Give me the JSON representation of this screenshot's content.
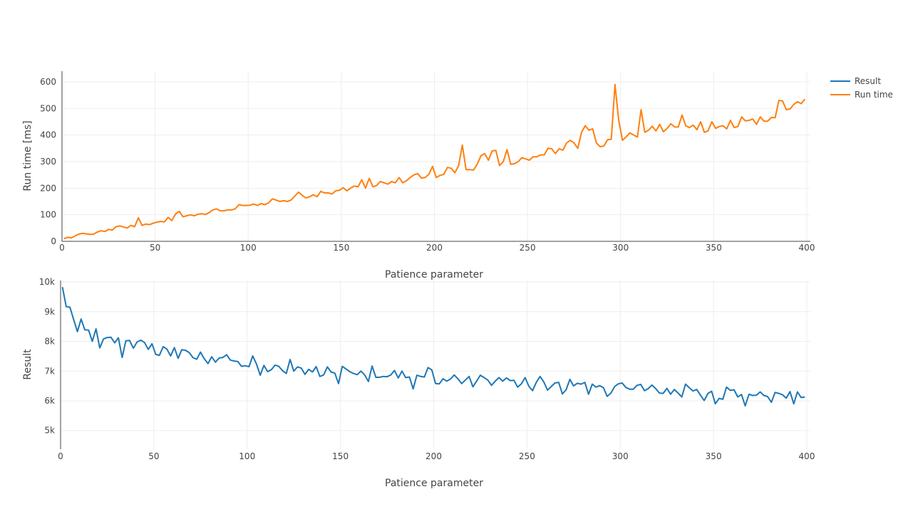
{
  "legend": [
    {
      "name": "Result",
      "color": "#1f77b4"
    },
    {
      "name": "Run time",
      "color": "#ff7f0e"
    }
  ],
  "chart_data": [
    {
      "type": "line",
      "title": "",
      "xlabel": "Patience parameter",
      "ylabel": "Run time [ms]",
      "xlim": [
        0,
        400
      ],
      "ylim": [
        0,
        640
      ],
      "xticks": [
        0,
        50,
        100,
        150,
        200,
        250,
        300,
        350,
        400
      ],
      "yticks": [
        0,
        100,
        200,
        300,
        400,
        500,
        600
      ],
      "ytick_labels": [
        "0",
        "100",
        "200",
        "300",
        "400",
        "500",
        "600"
      ],
      "grid": true,
      "series": [
        {
          "name": "Run time",
          "color": "#ff7f0e",
          "x": [
            1,
            3,
            5,
            7,
            9,
            11,
            13,
            15,
            17,
            19,
            21,
            23,
            25,
            27,
            29,
            31,
            33,
            35,
            37,
            39,
            41,
            43,
            45,
            47,
            49,
            51,
            53,
            55,
            57,
            59,
            61,
            63,
            65,
            67,
            69,
            71,
            73,
            75,
            77,
            79,
            81,
            83,
            85,
            87,
            89,
            91,
            93,
            95,
            97,
            99,
            101,
            103,
            105,
            107,
            109,
            111,
            113,
            115,
            117,
            119,
            121,
            123,
            125,
            127,
            129,
            131,
            133,
            135,
            137,
            139,
            141,
            143,
            145,
            147,
            149,
            151,
            153,
            155,
            157,
            159,
            161,
            163,
            165,
            167,
            169,
            171,
            173,
            175,
            177,
            179,
            181,
            183,
            185,
            187,
            189,
            191,
            193,
            195,
            197,
            199,
            201,
            203,
            205,
            207,
            209,
            211,
            213,
            215,
            217,
            219,
            221,
            223,
            225,
            227,
            229,
            231,
            233,
            235,
            237,
            239,
            241,
            243,
            245,
            247,
            249,
            251,
            253,
            255,
            257,
            259,
            261,
            263,
            265,
            267,
            269,
            271,
            273,
            275,
            277,
            279,
            281,
            283,
            285,
            287,
            289,
            291,
            293,
            295,
            297,
            299,
            301,
            303,
            305,
            307,
            309,
            311,
            313,
            315,
            317,
            319,
            321,
            323,
            325,
            327,
            329,
            331,
            333,
            335,
            337,
            339,
            341,
            343,
            345,
            347,
            349,
            351,
            353,
            355,
            357,
            359,
            361,
            363,
            365,
            367,
            369,
            371,
            373,
            375,
            377,
            379,
            381,
            383,
            385,
            387,
            389,
            391,
            393,
            395,
            397,
            399
          ],
          "y": [
            10,
            15,
            13,
            20,
            27,
            30,
            28,
            26,
            27,
            35,
            40,
            37,
            45,
            42,
            55,
            58,
            54,
            50,
            60,
            55,
            89,
            60,
            65,
            63,
            68,
            72,
            75,
            73,
            90,
            78,
            103,
            113,
            92,
            96,
            100,
            96,
            102,
            104,
            101,
            108,
            118,
            122,
            115,
            115,
            118,
            118,
            122,
            138,
            135,
            135,
            136,
            140,
            135,
            142,
            138,
            145,
            160,
            155,
            150,
            153,
            150,
            155,
            170,
            185,
            173,
            163,
            168,
            175,
            168,
            188,
            182,
            182,
            178,
            190,
            192,
            202,
            190,
            200,
            208,
            205,
            232,
            200,
            237,
            205,
            210,
            225,
            220,
            215,
            225,
            220,
            240,
            220,
            228,
            240,
            250,
            255,
            238,
            240,
            252,
            282,
            240,
            248,
            252,
            278,
            275,
            258,
            285,
            362,
            270,
            270,
            268,
            290,
            322,
            330,
            305,
            340,
            342,
            285,
            300,
            345,
            290,
            292,
            300,
            315,
            310,
            305,
            318,
            318,
            325,
            325,
            350,
            348,
            330,
            348,
            343,
            370,
            380,
            370,
            350,
            410,
            435,
            418,
            423,
            370,
            356,
            358,
            382,
            384,
            590,
            455,
            380,
            393,
            408,
            400,
            392,
            495,
            410,
            418,
            433,
            415,
            440,
            412,
            425,
            442,
            430,
            430,
            475,
            435,
            428,
            437,
            420,
            450,
            410,
            416,
            450,
            425,
            432,
            435,
            423,
            455,
            428,
            432,
            468,
            453,
            455,
            460,
            440,
            468,
            452,
            452,
            466,
            465,
            530,
            528,
            495,
            498,
            515,
            525,
            518,
            535
          ]
        }
      ]
    },
    {
      "type": "line",
      "title": "",
      "xlabel": "Patience parameter",
      "ylabel": "Result",
      "xlim": [
        0,
        400
      ],
      "ylim": [
        4370,
        10050
      ],
      "xticks": [
        0,
        50,
        100,
        150,
        200,
        250,
        300,
        350,
        400
      ],
      "yticks": [
        5000,
        6000,
        7000,
        8000,
        9000,
        10000
      ],
      "ytick_labels": [
        "5k",
        "6k",
        "7k",
        "8k",
        "9k",
        "10k"
      ],
      "grid": true,
      "series": [
        {
          "name": "Result",
          "color": "#1f77b4",
          "x": [
            1,
            3,
            5,
            7,
            9,
            11,
            13,
            15,
            17,
            19,
            21,
            23,
            25,
            27,
            29,
            31,
            33,
            35,
            37,
            39,
            41,
            43,
            45,
            47,
            49,
            51,
            53,
            55,
            57,
            59,
            61,
            63,
            65,
            67,
            69,
            71,
            73,
            75,
            77,
            79,
            81,
            83,
            85,
            87,
            89,
            91,
            93,
            95,
            97,
            99,
            101,
            103,
            105,
            107,
            109,
            111,
            113,
            115,
            117,
            119,
            121,
            123,
            125,
            127,
            129,
            131,
            133,
            135,
            137,
            139,
            141,
            143,
            145,
            147,
            149,
            151,
            153,
            155,
            157,
            159,
            161,
            163,
            165,
            167,
            169,
            171,
            173,
            175,
            177,
            179,
            181,
            183,
            185,
            187,
            189,
            191,
            193,
            195,
            197,
            199,
            201,
            203,
            205,
            207,
            209,
            211,
            213,
            215,
            217,
            219,
            221,
            223,
            225,
            227,
            229,
            231,
            233,
            235,
            237,
            239,
            241,
            243,
            245,
            247,
            249,
            251,
            253,
            255,
            257,
            259,
            261,
            263,
            265,
            267,
            269,
            271,
            273,
            275,
            277,
            279,
            281,
            283,
            285,
            287,
            289,
            291,
            293,
            295,
            297,
            299,
            301,
            303,
            305,
            307,
            309,
            311,
            313,
            315,
            317,
            319,
            321,
            323,
            325,
            327,
            329,
            331,
            333,
            335,
            337,
            339,
            341,
            343,
            345,
            347,
            349,
            351,
            353,
            355,
            357,
            359,
            361,
            363,
            365,
            367,
            369,
            371,
            373,
            375,
            377,
            379,
            381,
            383,
            385,
            387,
            389,
            391,
            393,
            395,
            397,
            399
          ],
          "y": [
            9830,
            9170,
            9150,
            8740,
            8330,
            8750,
            8390,
            8380,
            8000,
            8420,
            7780,
            8080,
            8130,
            8140,
            7950,
            8120,
            7460,
            8020,
            8030,
            7770,
            7980,
            8040,
            7960,
            7730,
            7920,
            7560,
            7530,
            7820,
            7740,
            7510,
            7790,
            7430,
            7720,
            7700,
            7620,
            7450,
            7400,
            7640,
            7420,
            7250,
            7480,
            7300,
            7440,
            7460,
            7550,
            7370,
            7340,
            7320,
            7160,
            7180,
            7150,
            7510,
            7240,
            6860,
            7190,
            6980,
            7050,
            7200,
            7160,
            7010,
            6920,
            7390,
            7000,
            7140,
            7100,
            6890,
            7060,
            6970,
            7150,
            6820,
            6870,
            7140,
            6970,
            6930,
            6580,
            7160,
            7070,
            6980,
            6920,
            6880,
            7000,
            6870,
            6650,
            7170,
            6790,
            6790,
            6820,
            6810,
            6870,
            7020,
            6770,
            7000,
            6780,
            6800,
            6400,
            6860,
            6820,
            6800,
            7120,
            7040,
            6580,
            6570,
            6740,
            6660,
            6730,
            6870,
            6740,
            6580,
            6700,
            6820,
            6470,
            6660,
            6860,
            6780,
            6700,
            6520,
            6660,
            6780,
            6660,
            6770,
            6680,
            6690,
            6460,
            6570,
            6780,
            6490,
            6340,
            6620,
            6820,
            6640,
            6360,
            6480,
            6600,
            6620,
            6230,
            6370,
            6720,
            6500,
            6590,
            6560,
            6620,
            6220,
            6560,
            6460,
            6510,
            6440,
            6150,
            6260,
            6480,
            6570,
            6600,
            6450,
            6390,
            6390,
            6520,
            6550,
            6340,
            6410,
            6530,
            6410,
            6260,
            6250,
            6420,
            6220,
            6380,
            6260,
            6130,
            6560,
            6440,
            6330,
            6380,
            6190,
            6010,
            6250,
            6320,
            5900,
            6080,
            6050,
            6460,
            6350,
            6370,
            6130,
            6210,
            5830,
            6220,
            6180,
            6190,
            6300,
            6180,
            6140,
            5950,
            6280,
            6250,
            6200,
            6090,
            6310,
            5900,
            6300,
            6110,
            6130
          ]
        }
      ]
    }
  ]
}
